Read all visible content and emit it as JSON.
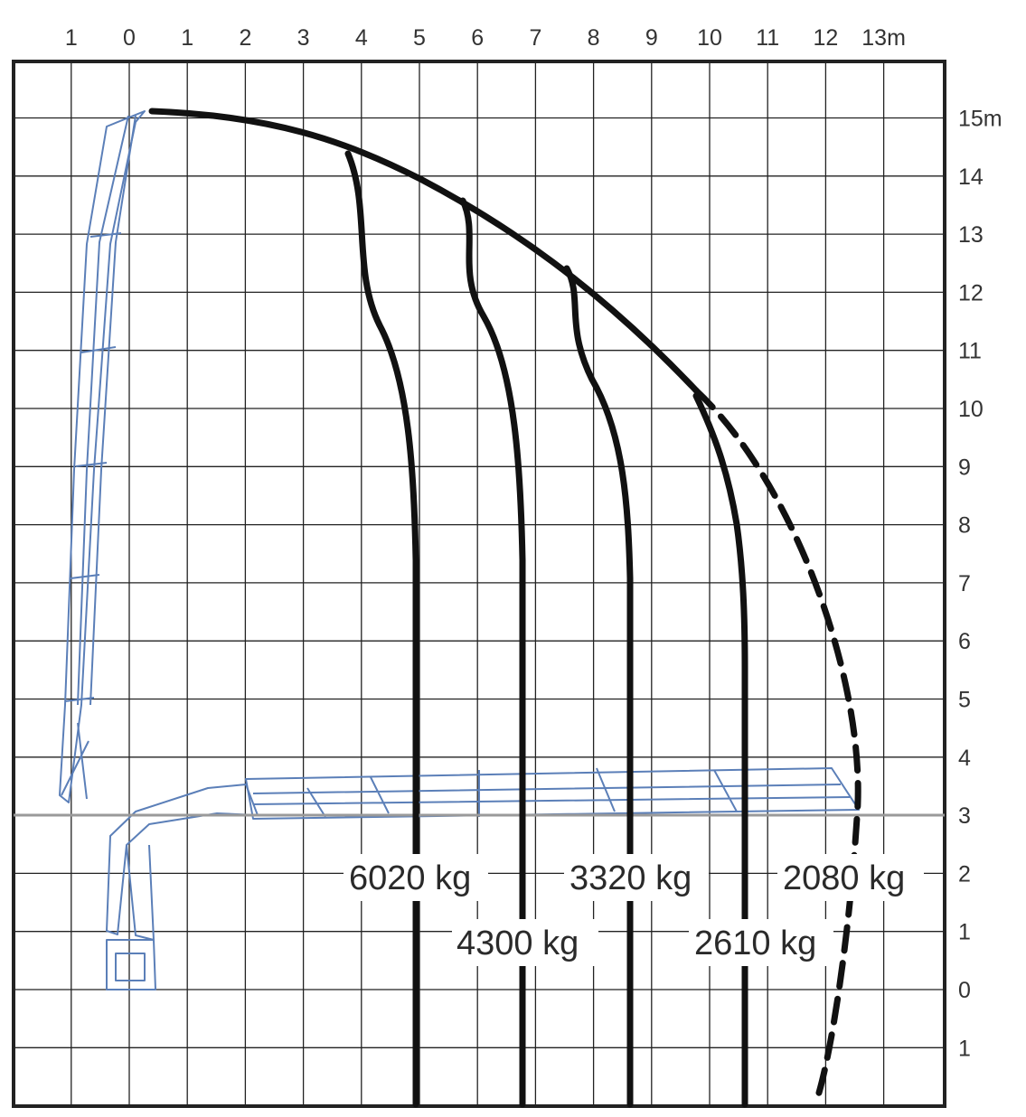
{
  "diagram": {
    "x_axis": {
      "ticks": [
        {
          "value": -1,
          "label": "1"
        },
        {
          "value": 0,
          "label": "0"
        },
        {
          "value": 1,
          "label": "1"
        },
        {
          "value": 2,
          "label": "2"
        },
        {
          "value": 3,
          "label": "3"
        },
        {
          "value": 4,
          "label": "4"
        },
        {
          "value": 5,
          "label": "5"
        },
        {
          "value": 6,
          "label": "6"
        },
        {
          "value": 7,
          "label": "7"
        },
        {
          "value": 8,
          "label": "8"
        },
        {
          "value": 9,
          "label": "9"
        },
        {
          "value": 10,
          "label": "10"
        },
        {
          "value": 11,
          "label": "11"
        },
        {
          "value": 12,
          "label": "12"
        },
        {
          "value": 13,
          "label": "13m"
        }
      ]
    },
    "y_axis": {
      "ticks": [
        {
          "value": 15,
          "label": "15m"
        },
        {
          "value": 14,
          "label": "14"
        },
        {
          "value": 13,
          "label": "13"
        },
        {
          "value": 12,
          "label": "12"
        },
        {
          "value": 11,
          "label": "11"
        },
        {
          "value": 10,
          "label": "10"
        },
        {
          "value": 9,
          "label": "9"
        },
        {
          "value": 8,
          "label": "8"
        },
        {
          "value": 7,
          "label": "7"
        },
        {
          "value": 6,
          "label": "6"
        },
        {
          "value": 5,
          "label": "5"
        },
        {
          "value": 4,
          "label": "4"
        },
        {
          "value": 3,
          "label": "3"
        },
        {
          "value": 2,
          "label": "2"
        },
        {
          "value": 1,
          "label": "1"
        },
        {
          "value": 0,
          "label": "0"
        },
        {
          "value": -1,
          "label": "1"
        }
      ]
    },
    "load_labels": [
      {
        "text": "6020 kg"
      },
      {
        "text": "4300 kg"
      },
      {
        "text": "3320 kg"
      },
      {
        "text": "2610 kg"
      },
      {
        "text": "2080 kg"
      }
    ],
    "colors": {
      "grid": "#222222",
      "curve": "#111111",
      "crane": "#5b7fb8",
      "baseline": "#9a9a9a",
      "label_bg": "#ffffff"
    }
  }
}
